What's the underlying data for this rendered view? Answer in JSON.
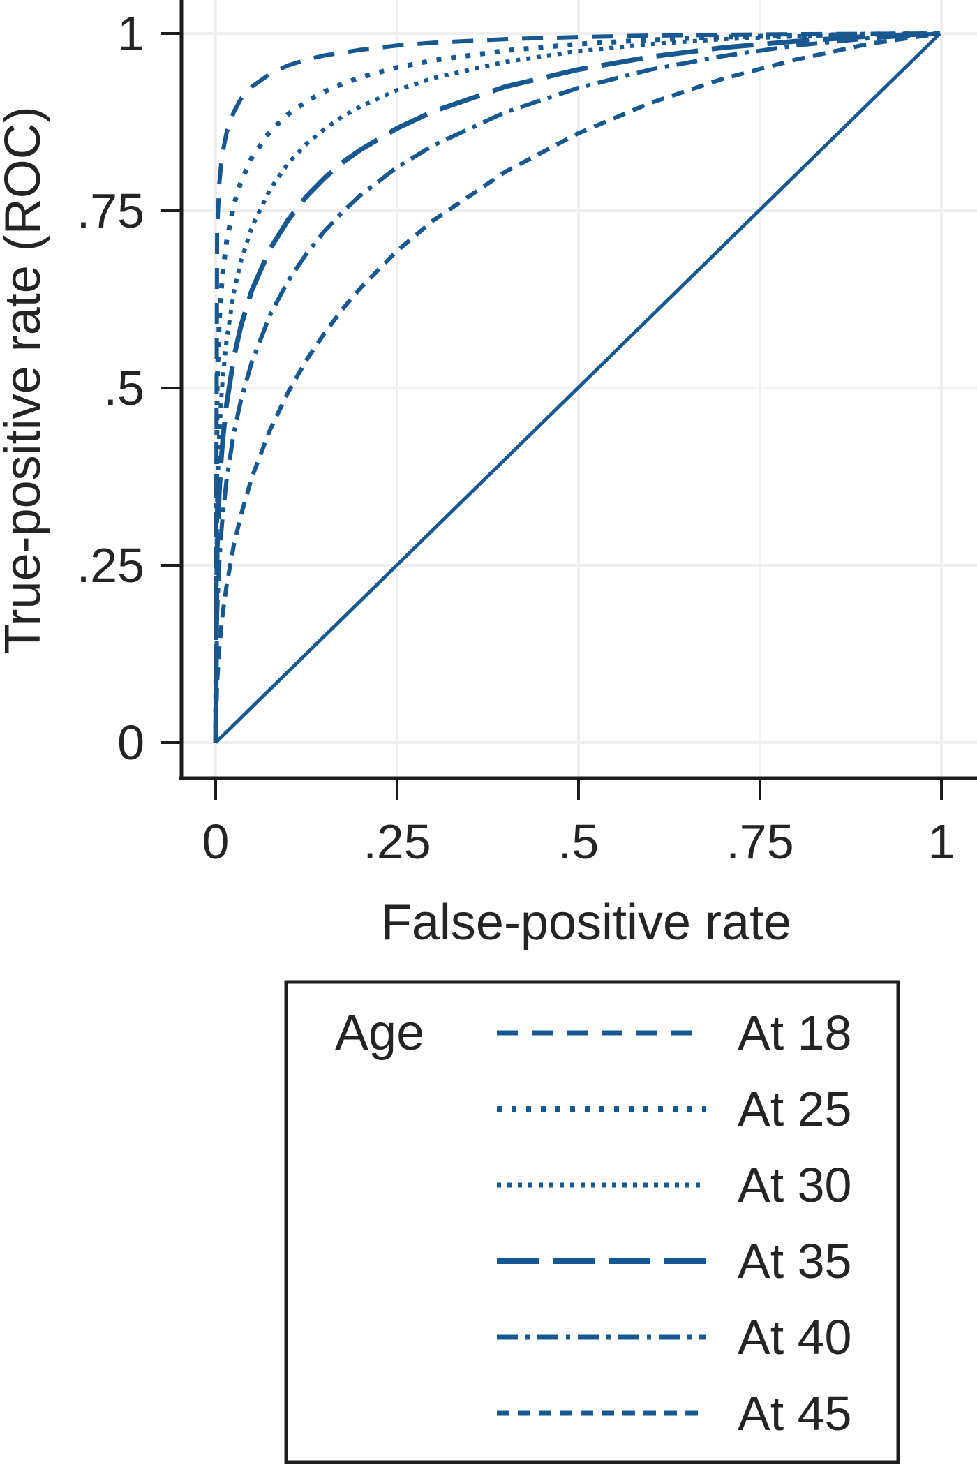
{
  "colors": {
    "line": "#185890",
    "grid": "#efefef",
    "axis": "#1c1c1c",
    "text": "#242424",
    "background": "#ffffff"
  },
  "chart_data": {
    "type": "line",
    "title": "",
    "xlabel": "False-positive rate",
    "ylabel": "True-positive rate (ROC)",
    "xlim": [
      0,
      1
    ],
    "ylim": [
      0,
      1
    ],
    "grid": true,
    "x_ticks": [
      {
        "v": 0,
        "label": "0"
      },
      {
        "v": 0.25,
        "label": ".25"
      },
      {
        "v": 0.5,
        "label": ".5"
      },
      {
        "v": 0.75,
        "label": ".75"
      },
      {
        "v": 1,
        "label": "1"
      }
    ],
    "y_ticks": [
      {
        "v": 1,
        "label": "1"
      },
      {
        "v": 0.75,
        "label": ".75"
      },
      {
        "v": 0.5,
        "label": ".5"
      },
      {
        "v": 0.25,
        "label": ".25"
      },
      {
        "v": 0,
        "label": "0"
      }
    ],
    "legend_title": "Age",
    "legend_position": "below-plot, boxed",
    "series": [
      {
        "name": "At 18",
        "line_style": "dash",
        "dash_array": "30 20",
        "stroke_width": 6,
        "x": [
          0,
          0.002,
          0.005,
          0.0075,
          0.01,
          0.015,
          0.025,
          0.035,
          0.05,
          0.075,
          0.1,
          0.125,
          0.15,
          0.175,
          0.2,
          0.25,
          0.3,
          0.4,
          0.5,
          0.6,
          0.7,
          0.8,
          0.9,
          1
        ],
        "y": [
          0,
          0.722,
          0.788,
          0.815,
          0.834,
          0.86,
          0.889,
          0.908,
          0.925,
          0.943,
          0.955,
          0.963,
          0.969,
          0.973,
          0.977,
          0.983,
          0.987,
          0.992,
          0.995,
          0.997,
          0.998,
          0.999,
          0.9995,
          1
        ]
      },
      {
        "name": "At 25",
        "line_style": "dot",
        "dash_array": "7 14",
        "stroke_width": 7,
        "x": [
          0,
          0.002,
          0.005,
          0.0075,
          0.01,
          0.015,
          0.025,
          0.035,
          0.05,
          0.075,
          0.1,
          0.125,
          0.15,
          0.175,
          0.2,
          0.25,
          0.3,
          0.4,
          0.5,
          0.6,
          0.7,
          0.8,
          0.9,
          1
        ],
        "y": [
          0,
          0.504,
          0.594,
          0.635,
          0.665,
          0.706,
          0.758,
          0.791,
          0.825,
          0.862,
          0.886,
          0.904,
          0.918,
          0.929,
          0.938,
          0.952,
          0.962,
          0.976,
          0.985,
          0.991,
          0.995,
          0.997,
          0.999,
          1
        ]
      },
      {
        "name": "At 30",
        "line_style": "fine-dot",
        "dash_array": "6 9",
        "stroke_width": 6,
        "x": [
          0,
          0.002,
          0.005,
          0.0075,
          0.01,
          0.015,
          0.025,
          0.035,
          0.05,
          0.075,
          0.1,
          0.125,
          0.15,
          0.175,
          0.2,
          0.25,
          0.3,
          0.4,
          0.5,
          0.6,
          0.7,
          0.8,
          0.9,
          1
        ],
        "y": [
          0,
          0.339,
          0.434,
          0.482,
          0.516,
          0.567,
          0.634,
          0.679,
          0.727,
          0.78,
          0.817,
          0.844,
          0.865,
          0.883,
          0.897,
          0.92,
          0.937,
          0.96,
          0.975,
          0.985,
          0.992,
          0.996,
          0.999,
          1
        ]
      },
      {
        "name": "At 35",
        "line_style": "long-dash",
        "dash_array": "60 20",
        "stroke_width": 7,
        "x": [
          0,
          0.002,
          0.005,
          0.0075,
          0.01,
          0.015,
          0.025,
          0.035,
          0.05,
          0.075,
          0.1,
          0.125,
          0.15,
          0.175,
          0.2,
          0.25,
          0.3,
          0.4,
          0.5,
          0.6,
          0.7,
          0.8,
          0.9,
          1
        ],
        "y": [
          0,
          0.271,
          0.354,
          0.397,
          0.429,
          0.477,
          0.542,
          0.588,
          0.638,
          0.696,
          0.737,
          0.77,
          0.796,
          0.818,
          0.836,
          0.866,
          0.89,
          0.925,
          0.949,
          0.967,
          0.98,
          0.989,
          0.996,
          1
        ]
      },
      {
        "name": "At 40",
        "line_style": "dash-dot",
        "dash_array": "30 11 6 11",
        "stroke_width": 6,
        "x": [
          0,
          0.002,
          0.005,
          0.0075,
          0.01,
          0.015,
          0.025,
          0.035,
          0.05,
          0.075,
          0.1,
          0.125,
          0.15,
          0.175,
          0.2,
          0.25,
          0.3,
          0.4,
          0.5,
          0.6,
          0.7,
          0.8,
          0.9,
          1
        ],
        "y": [
          0,
          0.183,
          0.254,
          0.293,
          0.323,
          0.37,
          0.436,
          0.483,
          0.537,
          0.603,
          0.651,
          0.689,
          0.721,
          0.748,
          0.772,
          0.811,
          0.842,
          0.889,
          0.923,
          0.949,
          0.968,
          0.983,
          0.993,
          1
        ]
      },
      {
        "name": "At 45",
        "line_style": "short-dash",
        "dash_array": "18 12",
        "stroke_width": 6,
        "x": [
          0,
          0.002,
          0.005,
          0.0075,
          0.01,
          0.015,
          0.025,
          0.035,
          0.05,
          0.075,
          0.1,
          0.125,
          0.15,
          0.175,
          0.2,
          0.25,
          0.3,
          0.4,
          0.5,
          0.6,
          0.7,
          0.8,
          0.9,
          1
        ],
        "y": [
          0,
          0.085,
          0.133,
          0.161,
          0.184,
          0.221,
          0.278,
          0.321,
          0.374,
          0.441,
          0.494,
          0.539,
          0.577,
          0.611,
          0.641,
          0.693,
          0.736,
          0.805,
          0.859,
          0.902,
          0.936,
          0.963,
          0.985,
          1
        ]
      }
    ],
    "reference_line": {
      "name": "chance diagonal",
      "line_style": "solid",
      "dash_array": "",
      "stroke_width": 5,
      "x": [
        0,
        1
      ],
      "y": [
        0,
        1
      ]
    }
  }
}
